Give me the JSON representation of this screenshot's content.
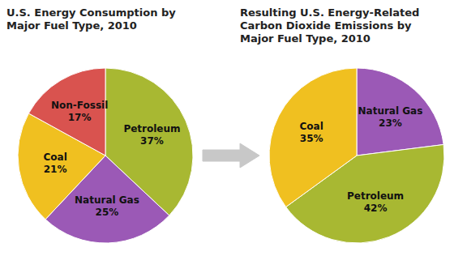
{
  "chart_data": [
    {
      "type": "pie",
      "title": "U.S. Energy Consumption by\nMajor Fuel Type, 2010",
      "categories": [
        "Petroleum",
        "Natural Gas",
        "Coal",
        "Non-Fossil"
      ],
      "values": [
        37,
        25,
        21,
        17
      ],
      "value_labels": [
        "37%",
        "25%",
        "21%",
        "17%"
      ],
      "colors": [
        "#a8b832",
        "#9b59b6",
        "#f0c020",
        "#d9534f"
      ],
      "data_labels": true
    },
    {
      "type": "pie",
      "title": "Resulting U.S. Energy-Related\nCarbon Dioxide Emissions by\nMajor Fuel Type, 2010",
      "categories": [
        "Natural Gas",
        "Petroleum",
        "Coal"
      ],
      "values": [
        23,
        42,
        35
      ],
      "value_labels": [
        "23%",
        "42%",
        "35%"
      ],
      "colors": [
        "#9b59b6",
        "#a8b832",
        "#f0c020"
      ],
      "data_labels": true
    }
  ]
}
